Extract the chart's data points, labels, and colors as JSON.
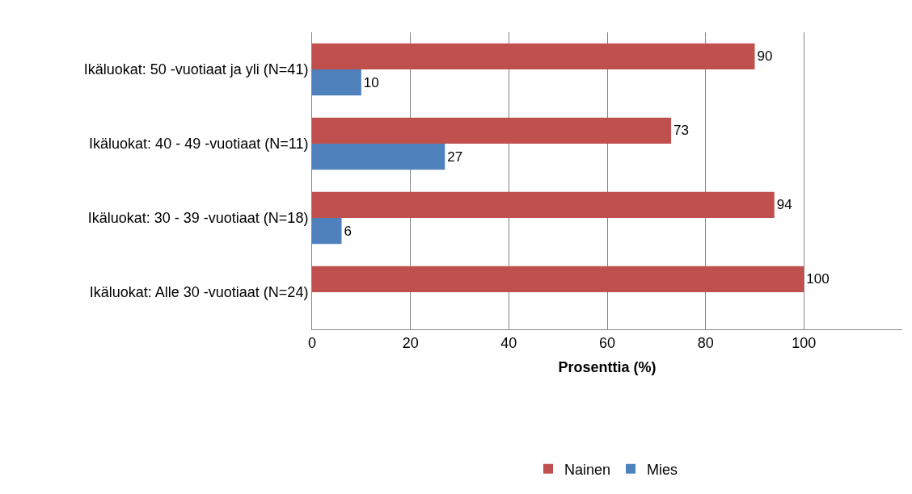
{
  "chart_data": {
    "type": "bar",
    "orientation": "horizontal",
    "xlabel": "Prosenttia (%)",
    "categories": [
      "Ikäluokat: 50 -vuotiaat ja yli (N=41)",
      "Ikäluokat: 40 - 49 -vuotiaat (N=11)",
      "Ikäluokat: 30 - 39 -vuotiaat (N=18)",
      "Ikäluokat: Alle 30 -vuotiaat (N=24)"
    ],
    "series": [
      {
        "name": "Nainen",
        "color": "#c0504d",
        "values": [
          90,
          73,
          94,
          100
        ]
      },
      {
        "name": "Mies",
        "color": "#4f81bd",
        "values": [
          10,
          27,
          6,
          null
        ]
      }
    ],
    "xlim": [
      0,
      120
    ],
    "xticks": [
      0,
      20,
      40,
      60,
      80,
      100
    ],
    "grid": "x",
    "legend": "bottom",
    "data_labels": true
  }
}
